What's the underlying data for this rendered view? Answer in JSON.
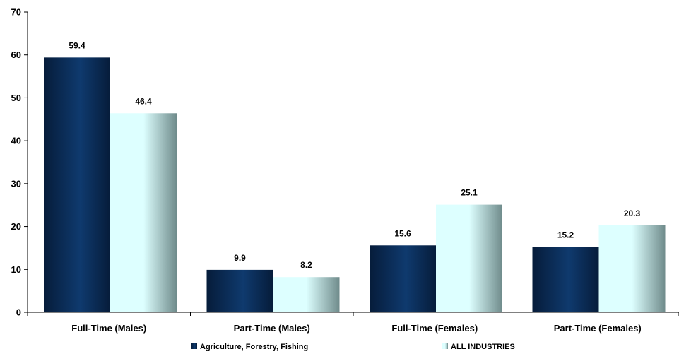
{
  "colors": {
    "series_agri_dark": "#061c3a",
    "series_agri_light": "#0f3a6e",
    "series_all_dark": "#6f8b8b",
    "series_all_light": "#ddffff"
  },
  "chart_data": {
    "type": "bar",
    "title": "",
    "xlabel": "",
    "ylabel": "",
    "ylim": [
      0,
      70
    ],
    "yticks": [
      0,
      10,
      20,
      30,
      40,
      50,
      60,
      70
    ],
    "grid": false,
    "legend_position": "bottom",
    "categories": [
      "Full-Time (Males)",
      "Part-Time (Males)",
      "Full-Time (Females)",
      "Part-Time (Females)"
    ],
    "series": [
      {
        "name": "Agriculture, Forestry, Fishing",
        "values": [
          59.4,
          9.9,
          15.6,
          15.2
        ],
        "labels": [
          "59.4",
          "9.9",
          "15.6",
          "15.2"
        ]
      },
      {
        "name": "ALL INDUSTRIES",
        "values": [
          46.4,
          8.2,
          25.1,
          20.3
        ],
        "labels": [
          "46.4",
          "8.2",
          "25.1",
          "20.3"
        ]
      }
    ]
  }
}
